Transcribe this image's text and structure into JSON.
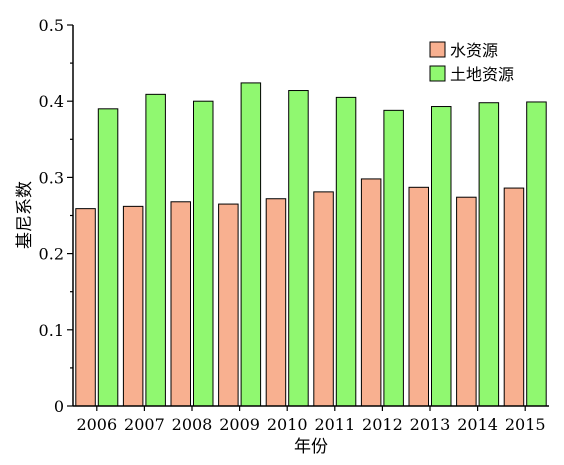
{
  "chart_data": {
    "type": "bar",
    "categories": [
      "2006",
      "2007",
      "2008",
      "2009",
      "2010",
      "2011",
      "2012",
      "2013",
      "2014",
      "2015"
    ],
    "series": [
      {
        "name": "水资源",
        "color": "#F8B090",
        "values": [
          0.259,
          0.262,
          0.268,
          0.265,
          0.272,
          0.281,
          0.298,
          0.287,
          0.274,
          0.286
        ]
      },
      {
        "name": "土地资源",
        "color": "#90F870",
        "values": [
          0.39,
          0.409,
          0.4,
          0.424,
          0.414,
          0.405,
          0.388,
          0.393,
          0.398,
          0.399
        ]
      }
    ],
    "xlabel": "年份",
    "ylabel": "基尼系数",
    "ylim": [
      0,
      0.5
    ],
    "yticks": [
      "0",
      "0.1",
      "0.2",
      "0.3",
      "0.4",
      "0.5"
    ],
    "grid": false,
    "legend_position": "top-right"
  }
}
